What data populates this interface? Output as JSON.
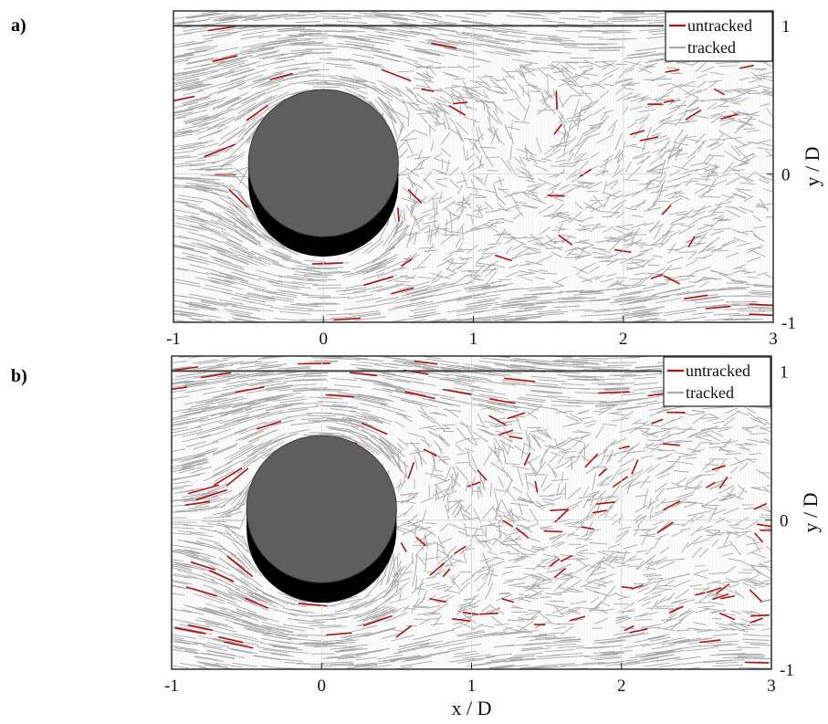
{
  "chart_data": [
    {
      "panel_label": "a)",
      "type": "scatter",
      "description_kind": "streak-line particle tracks around a circular cylinder",
      "xlabel": "",
      "ylabel": "y / D",
      "xlim": [
        -1,
        3
      ],
      "ylim": [
        -1,
        1.1
      ],
      "x_ticks": [
        "-1",
        "0",
        "1",
        "2",
        "3"
      ],
      "y_ticks": [
        "1",
        "0",
        "-1"
      ],
      "legend": {
        "position": "top-right",
        "entries": [
          {
            "label": "untracked",
            "color": "#b01010"
          },
          {
            "label": "tracked",
            "color": "#a8a8a8"
          }
        ]
      },
      "cylinder": {
        "center": [
          0,
          0
        ],
        "diameter": 1,
        "color": "#5e5e5e"
      },
      "wall_y": 1,
      "vortex_center": [
        1.5,
        0.2
      ],
      "untracked_density": 0.17,
      "grid": true
    },
    {
      "panel_label": "b)",
      "type": "scatter",
      "description_kind": "streak-line particle tracks around a circular cylinder",
      "xlabel": "x / D",
      "ylabel": "y / D",
      "xlim": [
        -1,
        3
      ],
      "ylim": [
        -1,
        1.1
      ],
      "x_ticks": [
        "-1",
        "0",
        "1",
        "2",
        "3"
      ],
      "y_ticks": [
        "1",
        "0",
        "-1"
      ],
      "legend": {
        "position": "top-right",
        "entries": [
          {
            "label": "untracked",
            "color": "#b01010"
          },
          {
            "label": "tracked",
            "color": "#a8a8a8"
          }
        ]
      },
      "cylinder": {
        "center": [
          0,
          0
        ],
        "diameter": 1,
        "color": "#5e5e5e"
      },
      "wall_y": 1,
      "vortex_center": [
        1.5,
        0.2
      ],
      "untracked_density": 0.36,
      "grid": true
    }
  ],
  "colors": {
    "tracked": "#a8a8a8",
    "untracked": "#b01010",
    "cylinder_face": "#5e5e5e",
    "cylinder_side": "#000000"
  }
}
